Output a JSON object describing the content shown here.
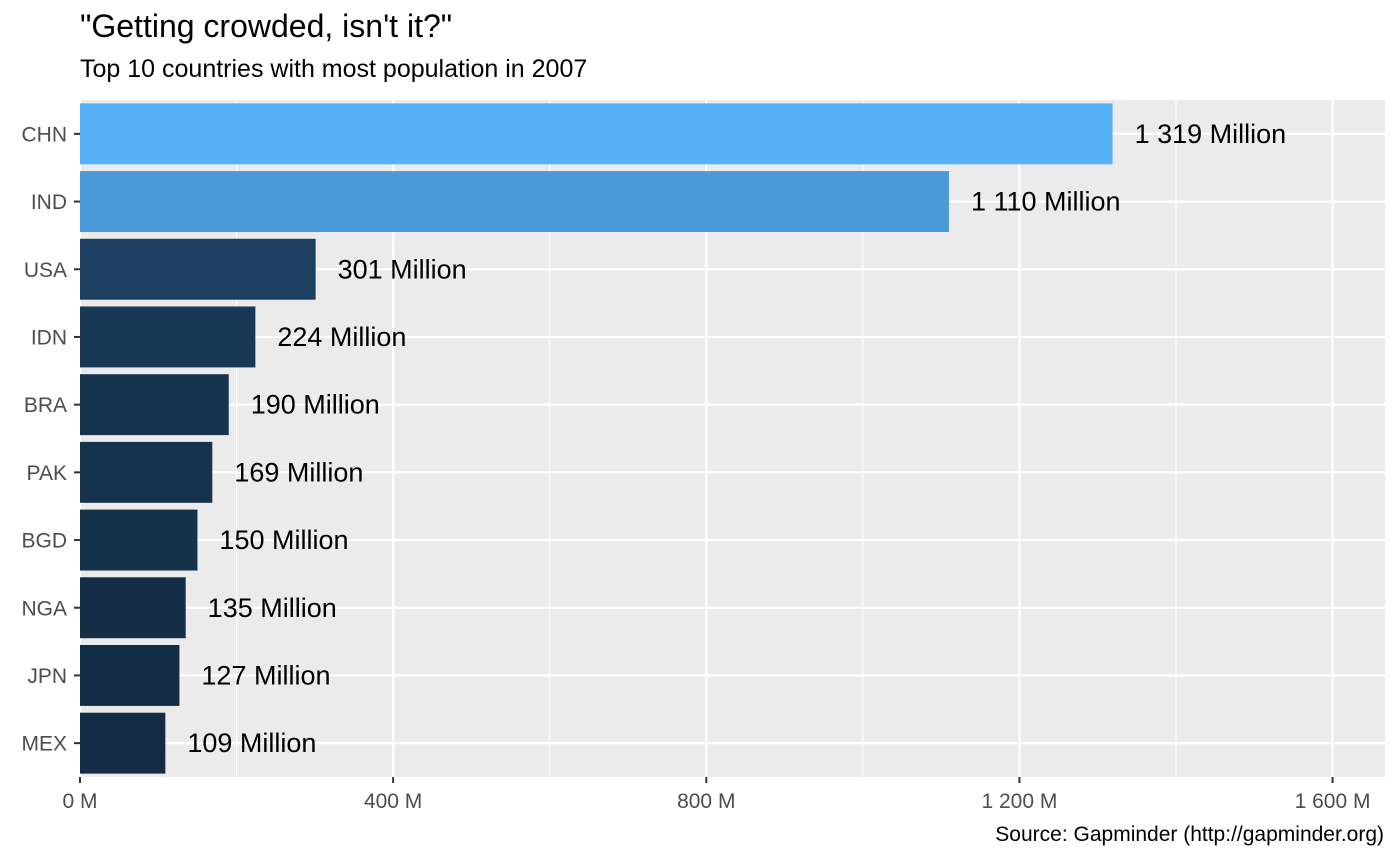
{
  "chart_data": {
    "type": "bar",
    "orientation": "horizontal",
    "title": "\"Getting crowded, isn't it?\"",
    "subtitle": "Top 10 countries with most population in 2007",
    "caption": "Source: Gapminder (http://gapminder.org)",
    "categories": [
      "CHN",
      "IND",
      "USA",
      "IDN",
      "BRA",
      "PAK",
      "BGD",
      "NGA",
      "JPN",
      "MEX"
    ],
    "values": [
      1319,
      1110,
      301,
      224,
      190,
      169,
      150,
      135,
      127,
      109
    ],
    "value_labels": [
      "1 319 Million",
      "1 110 Million",
      "301 Million",
      "224 Million",
      "190 Million",
      "169 Million",
      "150 Million",
      "135 Million",
      "127 Million",
      "109 Million"
    ],
    "x_ticks": [
      0,
      400,
      800,
      1200,
      1600
    ],
    "x_tick_labels": [
      "0 M",
      "400 M",
      "800 M",
      "1 200 M",
      "1 600 M"
    ],
    "xlim": [
      0,
      1667
    ],
    "grid": true,
    "colors": {
      "panel_background": "#EBEBEB",
      "grid": "#FFFFFF",
      "bar_high": "#56B1F7",
      "bar_low": "#132B43"
    }
  }
}
